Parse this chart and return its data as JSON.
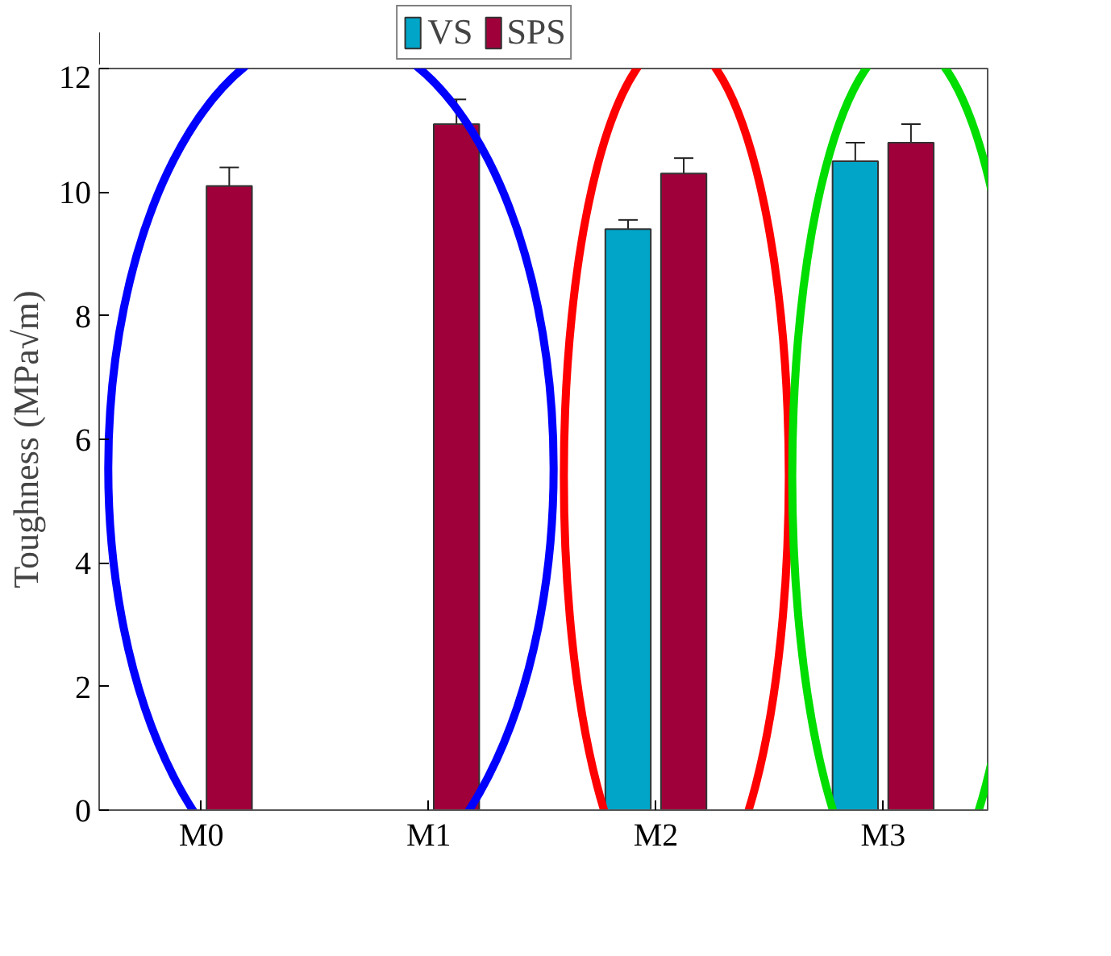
{
  "chart_data": {
    "type": "bar",
    "ylabel": "Toughness (MPa√m)",
    "categories": [
      "M0",
      "M1",
      "M2",
      "M3"
    ],
    "series": [
      {
        "name": "VS",
        "color": "#00a5c8",
        "values": [
          null,
          null,
          9.4,
          10.5
        ],
        "errors": [
          null,
          null,
          0.15,
          0.3
        ]
      },
      {
        "name": "SPS",
        "color": "#a0003a",
        "values": [
          10.1,
          11.1,
          10.3,
          10.8
        ],
        "errors": [
          0.3,
          0.4,
          0.25,
          0.3
        ]
      }
    ],
    "ylim": [
      0,
      12
    ],
    "yticks": [
      0,
      2,
      4,
      6,
      8,
      10,
      12
    ],
    "grid": false,
    "legend": "top"
  }
}
